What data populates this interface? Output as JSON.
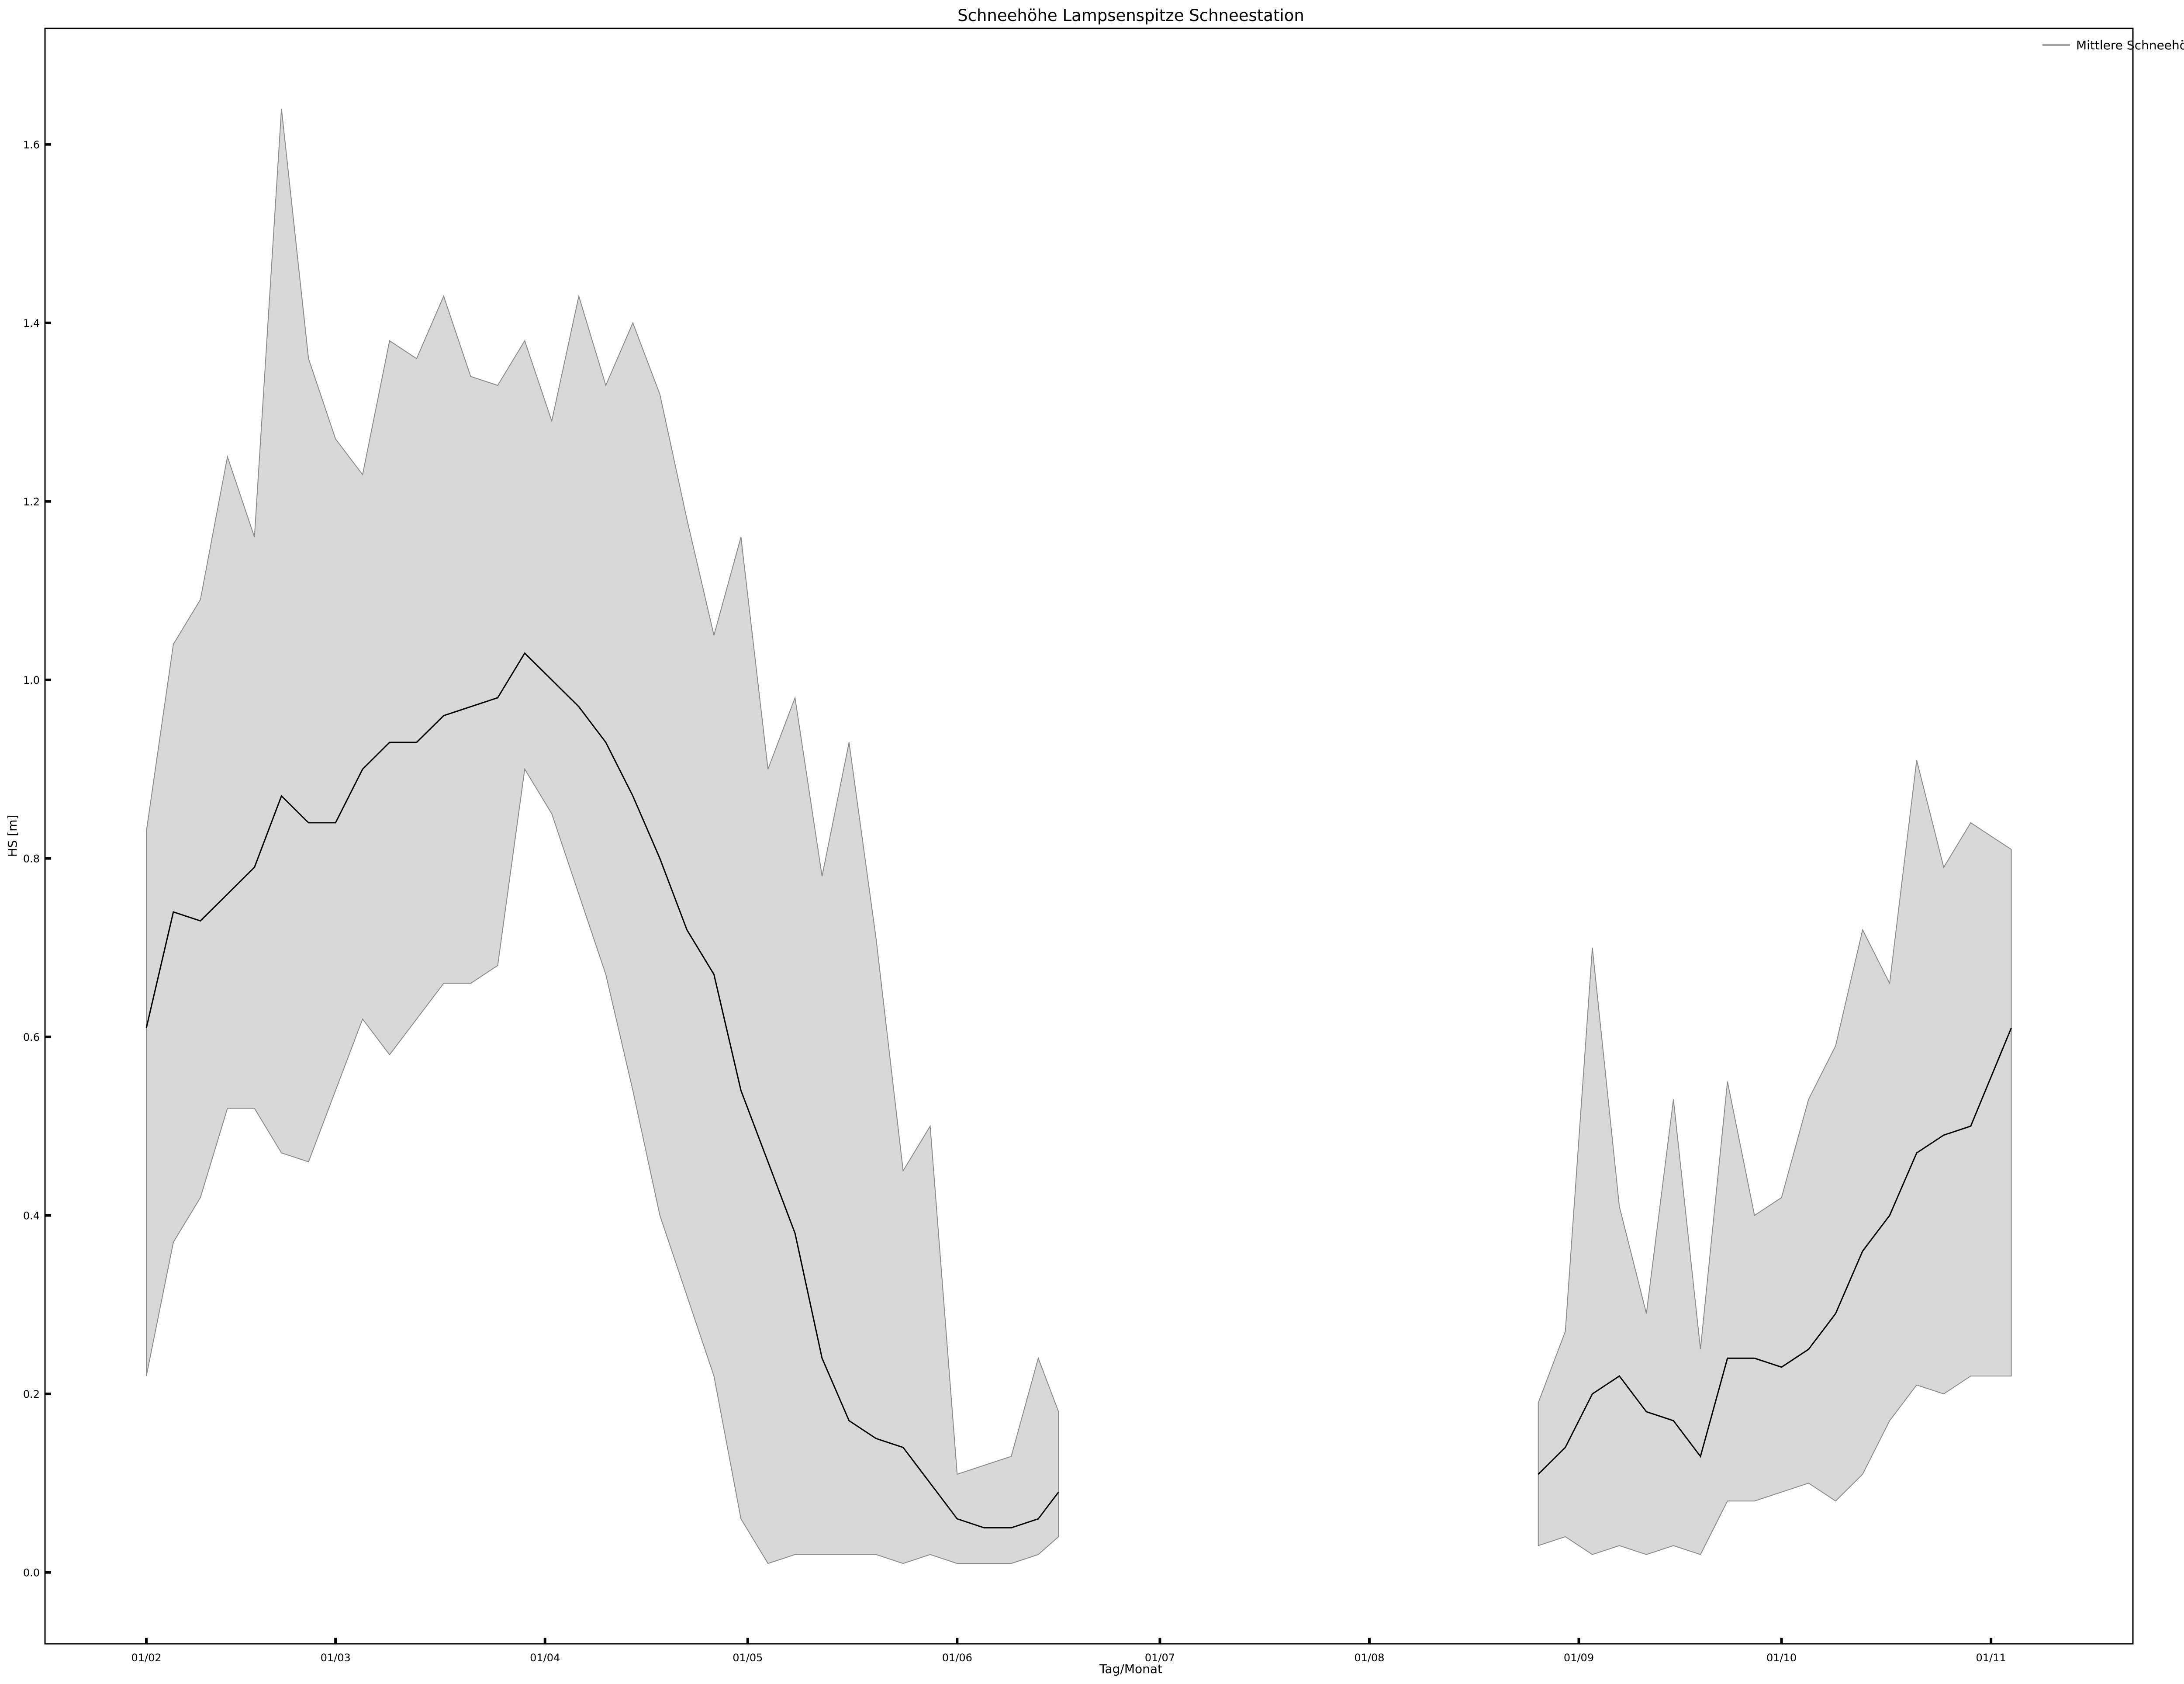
{
  "chart_data": {
    "type": "area",
    "title": "Schneehöhe  Lampsenspitze Schneestation",
    "xlabel": "Tag/Monat",
    "ylabel": "HS [m]",
    "ylim": [
      -0.08,
      1.73
    ],
    "yticks": [
      0.0,
      0.2,
      0.4,
      0.6,
      0.8,
      1.0,
      1.2,
      1.4,
      1.6
    ],
    "ytick_labels": [
      "0.0",
      "0.2",
      "0.4",
      "0.6",
      "0.8",
      "1.0",
      "1.2",
      "1.4",
      "1.6"
    ],
    "xlim": [
      "2001-01-17",
      "2001-11-22"
    ],
    "xticks": [
      "2001-02-01",
      "2001-03-01",
      "2001-04-01",
      "2001-05-01",
      "2001-06-01",
      "2001-07-01",
      "2001-08-01",
      "2001-09-01",
      "2001-10-01",
      "2001-11-01"
    ],
    "xtick_labels": [
      "01/02",
      "01/03",
      "01/04",
      "01/05",
      "01/06",
      "01/07",
      "01/08",
      "01/09",
      "01/10",
      "01/11"
    ],
    "grid": false,
    "legend": {
      "position": "top-right",
      "entries": [
        "Mittlere Schneehöhe"
      ]
    },
    "colors": {
      "mean_line": "#000000",
      "band_fill": "#d8d8d8",
      "band_edge": "#8a8a8a"
    },
    "segments": [
      {
        "x": [
          "2001-02-01",
          "2001-02-05",
          "2001-02-09",
          "2001-02-13",
          "2001-02-17",
          "2001-02-21",
          "2001-02-25",
          "2001-03-01",
          "2001-03-05",
          "2001-03-09",
          "2001-03-13",
          "2001-03-17",
          "2001-03-21",
          "2001-03-25",
          "2001-03-29",
          "2001-04-02",
          "2001-04-06",
          "2001-04-10",
          "2001-04-14",
          "2001-04-18",
          "2001-04-22",
          "2001-04-26",
          "2001-04-30",
          "2001-05-04",
          "2001-05-08",
          "2001-05-12",
          "2001-05-16",
          "2001-05-20",
          "2001-05-24",
          "2001-05-28",
          "2001-06-01",
          "2001-06-05",
          "2001-06-09",
          "2001-06-13",
          "2001-06-16"
        ],
        "mean": [
          0.61,
          0.74,
          0.73,
          0.76,
          0.79,
          0.87,
          0.84,
          0.84,
          0.9,
          0.93,
          0.93,
          0.96,
          0.97,
          0.98,
          1.03,
          1.0,
          0.97,
          0.93,
          0.87,
          0.8,
          0.72,
          0.67,
          0.54,
          0.46,
          0.38,
          0.24,
          0.17,
          0.15,
          0.14,
          0.1,
          0.06,
          0.05,
          0.05,
          0.06,
          0.09
        ],
        "max": [
          0.83,
          1.04,
          1.09,
          1.25,
          1.16,
          1.64,
          1.36,
          1.27,
          1.23,
          1.38,
          1.36,
          1.43,
          1.34,
          1.33,
          1.38,
          1.29,
          1.43,
          1.33,
          1.4,
          1.32,
          1.18,
          1.05,
          1.16,
          0.9,
          0.98,
          0.78,
          0.93,
          0.71,
          0.45,
          0.5,
          0.11,
          0.12,
          0.13,
          0.24,
          0.18
        ],
        "min": [
          0.22,
          0.37,
          0.42,
          0.52,
          0.52,
          0.47,
          0.46,
          0.54,
          0.62,
          0.58,
          0.62,
          0.66,
          0.66,
          0.68,
          0.9,
          0.85,
          0.76,
          0.67,
          0.54,
          0.4,
          0.31,
          0.22,
          0.06,
          0.01,
          0.02,
          0.02,
          0.02,
          0.02,
          0.01,
          0.02,
          0.01,
          0.01,
          0.01,
          0.02,
          0.04
        ]
      },
      {
        "x": [
          "2001-08-26",
          "2001-08-30",
          "2001-09-03",
          "2001-09-07",
          "2001-09-11",
          "2001-09-15",
          "2001-09-19",
          "2001-09-23",
          "2001-09-27",
          "2001-10-01",
          "2001-10-05",
          "2001-10-09",
          "2001-10-13",
          "2001-10-17",
          "2001-10-21",
          "2001-10-25",
          "2001-10-29",
          "2001-11-04"
        ],
        "mean": [
          0.11,
          0.14,
          0.2,
          0.22,
          0.18,
          0.17,
          0.13,
          0.24,
          0.24,
          0.23,
          0.25,
          0.29,
          0.36,
          0.4,
          0.47,
          0.49,
          0.5,
          0.61
        ],
        "max": [
          0.19,
          0.27,
          0.7,
          0.41,
          0.29,
          0.53,
          0.25,
          0.55,
          0.4,
          0.42,
          0.53,
          0.59,
          0.72,
          0.66,
          0.91,
          0.79,
          0.84,
          0.81
        ],
        "min": [
          0.03,
          0.04,
          0.02,
          0.03,
          0.02,
          0.03,
          0.02,
          0.08,
          0.08,
          0.09,
          0.1,
          0.08,
          0.11,
          0.17,
          0.21,
          0.2,
          0.22,
          0.22
        ]
      }
    ]
  }
}
